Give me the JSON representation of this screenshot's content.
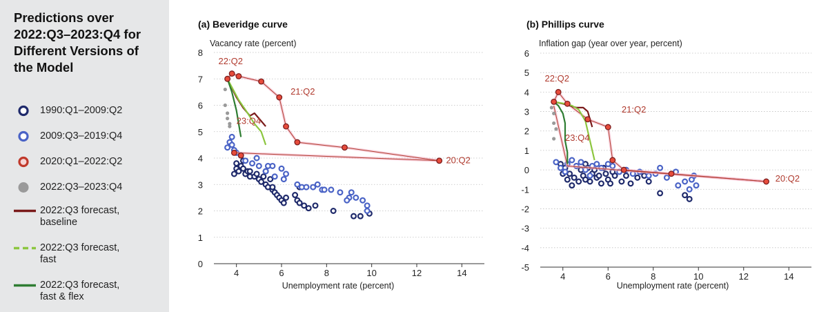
{
  "legend": {
    "title": "Predictions over\n2022:Q3–2023:Q4 for\nDifferent Versions of\nthe Model",
    "items": [
      {
        "kind": "marker",
        "label": "1990:Q1–2009:Q2",
        "color": "#1f2a6b",
        "fill": "#ffffff"
      },
      {
        "kind": "marker",
        "label": "2009:Q3–2019:Q4",
        "color": "#4a63c6",
        "fill": "#ffffff"
      },
      {
        "kind": "marker",
        "label": "2020:Q1–2022:Q2",
        "color": "#c0392b",
        "fill": "#f5d5d5"
      },
      {
        "kind": "dot",
        "label": "2022:Q3–2023:Q4",
        "color": "#9a9a9a"
      },
      {
        "kind": "line",
        "label": "2022:Q3 forecast,",
        "label2": "baseline",
        "color": "#7a1a1a",
        "dash": ""
      },
      {
        "kind": "line",
        "label": "2022:Q3 forecast,",
        "label2": "fast",
        "color": "#8cc63f",
        "dash": "8,5"
      },
      {
        "kind": "line",
        "label": "2022:Q3 forecast,",
        "label2": "fast & flex",
        "color": "#2e7d32",
        "dash": ""
      }
    ]
  },
  "chart_data": [
    {
      "type": "scatter",
      "title": "(a) Beveridge curve",
      "ylabel": "Vacancy rate (percent)",
      "xlabel": "Unemployment rate (percent)",
      "xlim": [
        3,
        15
      ],
      "ylim": [
        0,
        8
      ],
      "xticks": [
        4,
        6,
        8,
        10,
        12,
        14
      ],
      "yticks": [
        0,
        1,
        2,
        3,
        4,
        5,
        6,
        7,
        8
      ],
      "series": [
        {
          "name": "1990:Q1–2009:Q2",
          "points": [
            [
              3.9,
              3.4
            ],
            [
              4.0,
              3.6
            ],
            [
              4.1,
              3.5
            ],
            [
              4.2,
              3.7
            ],
            [
              4.3,
              3.6
            ],
            [
              4.4,
              3.4
            ],
            [
              4.5,
              3.5
            ],
            [
              4.6,
              3.3
            ],
            [
              4.8,
              3.3
            ],
            [
              4.9,
              3.4
            ],
            [
              5.0,
              3.2
            ],
            [
              5.1,
              3.1
            ],
            [
              5.2,
              3.3
            ],
            [
              5.3,
              3.0
            ],
            [
              5.4,
              2.9
            ],
            [
              5.5,
              3.2
            ],
            [
              5.6,
              2.8
            ],
            [
              5.7,
              2.7
            ],
            [
              5.8,
              2.6
            ],
            [
              5.9,
              2.5
            ],
            [
              6.0,
              2.4
            ],
            [
              6.1,
              2.3
            ],
            [
              6.2,
              2.5
            ],
            [
              6.6,
              2.6
            ],
            [
              6.7,
              2.4
            ],
            [
              6.8,
              2.3
            ],
            [
              7.0,
              2.2
            ],
            [
              7.2,
              2.1
            ],
            [
              7.5,
              2.2
            ],
            [
              8.3,
              2.0
            ],
            [
              9.2,
              1.8
            ],
            [
              9.5,
              1.8
            ],
            [
              9.9,
              1.9
            ],
            [
              4.0,
              3.8
            ],
            [
              4.3,
              3.9
            ],
            [
              4.6,
              3.5
            ],
            [
              5.3,
              3.5
            ],
            [
              5.6,
              2.9
            ],
            [
              6.8,
              2.9
            ]
          ]
        },
        {
          "name": "2009:Q3–2019:Q4",
          "points": [
            [
              3.6,
              4.4
            ],
            [
              3.7,
              4.6
            ],
            [
              3.8,
              4.5
            ],
            [
              3.9,
              4.3
            ],
            [
              4.0,
              4.2
            ],
            [
              4.2,
              4.1
            ],
            [
              4.4,
              3.9
            ],
            [
              4.7,
              3.8
            ],
            [
              4.9,
              4.0
            ],
            [
              5.0,
              3.7
            ],
            [
              5.3,
              3.5
            ],
            [
              5.4,
              3.7
            ],
            [
              5.6,
              3.7
            ],
            [
              5.7,
              3.3
            ],
            [
              6.1,
              3.2
            ],
            [
              6.2,
              3.4
            ],
            [
              6.7,
              3.0
            ],
            [
              6.9,
              2.9
            ],
            [
              7.1,
              2.9
            ],
            [
              7.4,
              2.9
            ],
            [
              7.6,
              3.0
            ],
            [
              7.8,
              2.8
            ],
            [
              8.2,
              2.8
            ],
            [
              8.6,
              2.7
            ],
            [
              9.1,
              2.7
            ],
            [
              9.3,
              2.5
            ],
            [
              9.6,
              2.4
            ],
            [
              9.8,
              2.2
            ],
            [
              9.8,
              2.0
            ],
            [
              9.0,
              2.5
            ],
            [
              8.9,
              2.4
            ],
            [
              7.9,
              2.8
            ],
            [
              6.0,
              3.6
            ],
            [
              3.8,
              4.8
            ]
          ]
        },
        {
          "name": "2020:Q1–2022:Q2",
          "points": [
            [
              3.6,
              7.0
            ],
            [
              3.8,
              7.2
            ],
            [
              4.1,
              7.1
            ],
            [
              5.1,
              6.9
            ],
            [
              5.9,
              6.3
            ],
            [
              6.2,
              5.2
            ],
            [
              6.7,
              4.6
            ],
            [
              8.8,
              4.4
            ],
            [
              13.0,
              3.9
            ],
            [
              3.9,
              4.2
            ],
            [
              4.2,
              4.1
            ]
          ],
          "path": [
            [
              13.0,
              3.9
            ],
            [
              8.8,
              4.4
            ],
            [
              6.7,
              4.6
            ],
            [
              6.2,
              5.2
            ],
            [
              5.9,
              6.3
            ],
            [
              5.1,
              6.9
            ],
            [
              4.1,
              7.1
            ],
            [
              3.8,
              7.2
            ],
            [
              3.6,
              7.0
            ]
          ],
          "path2": [
            [
              3.9,
              4.2
            ],
            [
              13.0,
              3.9
            ]
          ]
        },
        {
          "name": "2022:Q3–2023:Q4",
          "points": [
            [
              3.5,
              6.6
            ],
            [
              3.5,
              6.0
            ],
            [
              3.6,
              5.7
            ],
            [
              3.6,
              5.5
            ],
            [
              3.7,
              5.3
            ],
            [
              3.7,
              5.2
            ]
          ]
        },
        {
          "name": "2022:Q3 forecast, baseline",
          "path": [
            [
              3.6,
              7.0
            ],
            [
              4.0,
              6.3
            ],
            [
              4.3,
              5.9
            ],
            [
              4.6,
              5.6
            ],
            [
              4.8,
              5.7
            ],
            [
              5.0,
              5.5
            ],
            [
              5.1,
              5.4
            ],
            [
              5.3,
              5.2
            ]
          ]
        },
        {
          "name": "2022:Q3 forecast, fast",
          "path": [
            [
              3.6,
              7.0
            ],
            [
              4.1,
              6.2
            ],
            [
              4.5,
              5.7
            ],
            [
              4.8,
              5.3
            ],
            [
              5.1,
              5.0
            ],
            [
              5.3,
              4.5
            ]
          ]
        },
        {
          "name": "2022:Q3 forecast, fast & flex",
          "path": [
            [
              3.6,
              7.0
            ],
            [
              3.8,
              6.5
            ],
            [
              4.0,
              5.8
            ],
            [
              4.1,
              5.3
            ],
            [
              4.2,
              4.8
            ]
          ]
        }
      ],
      "annotations": [
        {
          "text": "22:Q2",
          "x": 3.2,
          "y": 7.55
        },
        {
          "text": "21:Q2",
          "x": 6.4,
          "y": 6.4
        },
        {
          "text": "23:Q4",
          "x": 4.0,
          "y": 5.3
        },
        {
          "text": "20:Q2",
          "x": 13.3,
          "y": 3.8
        }
      ]
    },
    {
      "type": "scatter",
      "title": "(b) Phillips curve",
      "ylabel": "Inflation gap (year over year, percent)",
      "xlabel": "Unemployment rate (percent)",
      "xlim": [
        3,
        15
      ],
      "ylim": [
        -5,
        6
      ],
      "xticks": [
        4,
        6,
        8,
        10,
        12,
        14
      ],
      "yticks": [
        -5,
        -4,
        -3,
        -2,
        -1,
        0,
        1,
        2,
        3,
        4,
        5,
        6
      ],
      "series": [
        {
          "name": "1990:Q1–2009:Q2",
          "points": [
            [
              3.9,
              0.3
            ],
            [
              4.0,
              -0.2
            ],
            [
              4.1,
              0.1
            ],
            [
              4.2,
              -0.5
            ],
            [
              4.3,
              -0.2
            ],
            [
              4.4,
              -0.8
            ],
            [
              4.5,
              -0.4
            ],
            [
              4.6,
              0.2
            ],
            [
              4.7,
              -0.6
            ],
            [
              4.8,
              0.0
            ],
            [
              4.9,
              -0.3
            ],
            [
              5.0,
              -0.5
            ],
            [
              5.1,
              0.1
            ],
            [
              5.2,
              -0.6
            ],
            [
              5.3,
              -0.2
            ],
            [
              5.4,
              0.0
            ],
            [
              5.5,
              -0.4
            ],
            [
              5.6,
              -0.3
            ],
            [
              5.7,
              -0.7
            ],
            [
              5.8,
              0.1
            ],
            [
              5.9,
              -0.2
            ],
            [
              6.0,
              -0.5
            ],
            [
              6.1,
              -0.7
            ],
            [
              6.3,
              -0.3
            ],
            [
              6.6,
              -0.6
            ],
            [
              6.8,
              -0.3
            ],
            [
              7.0,
              -0.7
            ],
            [
              7.3,
              -0.4
            ],
            [
              7.6,
              -0.3
            ],
            [
              7.8,
              -0.6
            ],
            [
              8.3,
              -1.2
            ],
            [
              9.4,
              -1.3
            ],
            [
              9.6,
              -1.5
            ],
            [
              6.2,
              -0.1
            ],
            [
              5.0,
              0.3
            ]
          ]
        },
        {
          "name": "2009:Q3–2019:Q4",
          "points": [
            [
              3.7,
              0.4
            ],
            [
              3.9,
              0.1
            ],
            [
              4.1,
              -0.1
            ],
            [
              4.2,
              0.3
            ],
            [
              4.4,
              0.5
            ],
            [
              4.6,
              0.2
            ],
            [
              4.8,
              0.4
            ],
            [
              5.0,
              0.0
            ],
            [
              5.2,
              -0.3
            ],
            [
              5.3,
              0.2
            ],
            [
              5.5,
              0.3
            ],
            [
              5.7,
              0.1
            ],
            [
              6.0,
              0.3
            ],
            [
              6.2,
              0.2
            ],
            [
              6.5,
              -0.1
            ],
            [
              6.8,
              0.0
            ],
            [
              7.1,
              -0.2
            ],
            [
              7.4,
              -0.1
            ],
            [
              7.8,
              -0.3
            ],
            [
              8.1,
              -0.2
            ],
            [
              8.3,
              0.1
            ],
            [
              8.6,
              -0.4
            ],
            [
              9.0,
              -0.1
            ],
            [
              9.1,
              -0.8
            ],
            [
              9.4,
              -0.6
            ],
            [
              9.6,
              -1.0
            ],
            [
              9.7,
              -0.5
            ],
            [
              9.9,
              -0.8
            ],
            [
              9.8,
              -0.3
            ]
          ]
        },
        {
          "name": "2020:Q1–2022:Q2",
          "points": [
            [
              3.6,
              3.5
            ],
            [
              3.8,
              4.0
            ],
            [
              4.2,
              3.4
            ],
            [
              5.1,
              2.6
            ],
            [
              6.0,
              2.2
            ],
            [
              6.2,
              0.5
            ],
            [
              6.7,
              0.0
            ],
            [
              8.8,
              -0.2
            ],
            [
              13.0,
              -0.6
            ]
          ],
          "path": [
            [
              13.0,
              -0.6
            ],
            [
              8.8,
              -0.2
            ],
            [
              6.7,
              0.0
            ],
            [
              6.2,
              0.5
            ],
            [
              6.0,
              2.2
            ],
            [
              5.1,
              2.6
            ],
            [
              4.2,
              3.4
            ],
            [
              3.8,
              4.0
            ],
            [
              3.6,
              3.5
            ]
          ],
          "path2": [
            [
              3.6,
              3.3
            ],
            [
              4.2,
              0.2
            ],
            [
              13.0,
              -0.6
            ]
          ]
        },
        {
          "name": "2022:Q3–2023:Q4",
          "points": [
            [
              3.5,
              3.2
            ],
            [
              3.6,
              2.9
            ],
            [
              3.6,
              2.4
            ],
            [
              3.7,
              2.1
            ],
            [
              3.6,
              1.6
            ]
          ]
        },
        {
          "name": "2022:Q3 forecast, baseline",
          "path": [
            [
              3.6,
              3.5
            ],
            [
              4.0,
              3.4
            ],
            [
              4.3,
              3.3
            ],
            [
              4.6,
              3.2
            ],
            [
              4.9,
              3.2
            ],
            [
              5.1,
              3.0
            ],
            [
              5.2,
              2.6
            ],
            [
              5.3,
              2.2
            ]
          ]
        },
        {
          "name": "2022:Q3 forecast, fast",
          "path": [
            [
              3.6,
              3.5
            ],
            [
              4.1,
              3.4
            ],
            [
              4.4,
              3.3
            ],
            [
              4.7,
              3.1
            ],
            [
              5.0,
              2.5
            ],
            [
              5.2,
              1.5
            ],
            [
              5.4,
              0.5
            ]
          ]
        },
        {
          "name": "2022:Q3 forecast, fast & flex",
          "path": [
            [
              3.6,
              3.5
            ],
            [
              3.8,
              3.3
            ],
            [
              4.0,
              2.9
            ],
            [
              4.1,
              2.4
            ],
            [
              4.1,
              1.5
            ],
            [
              4.2,
              0.9
            ],
            [
              4.2,
              0.3
            ]
          ]
        }
      ],
      "annotations": [
        {
          "text": "22:Q2",
          "x": 3.2,
          "y": 4.55
        },
        {
          "text": "21:Q2",
          "x": 6.6,
          "y": 2.95
        },
        {
          "text": "23:Q4",
          "x": 4.1,
          "y": 1.5
        },
        {
          "text": "20:Q2",
          "x": 13.4,
          "y": -0.6
        }
      ]
    }
  ]
}
